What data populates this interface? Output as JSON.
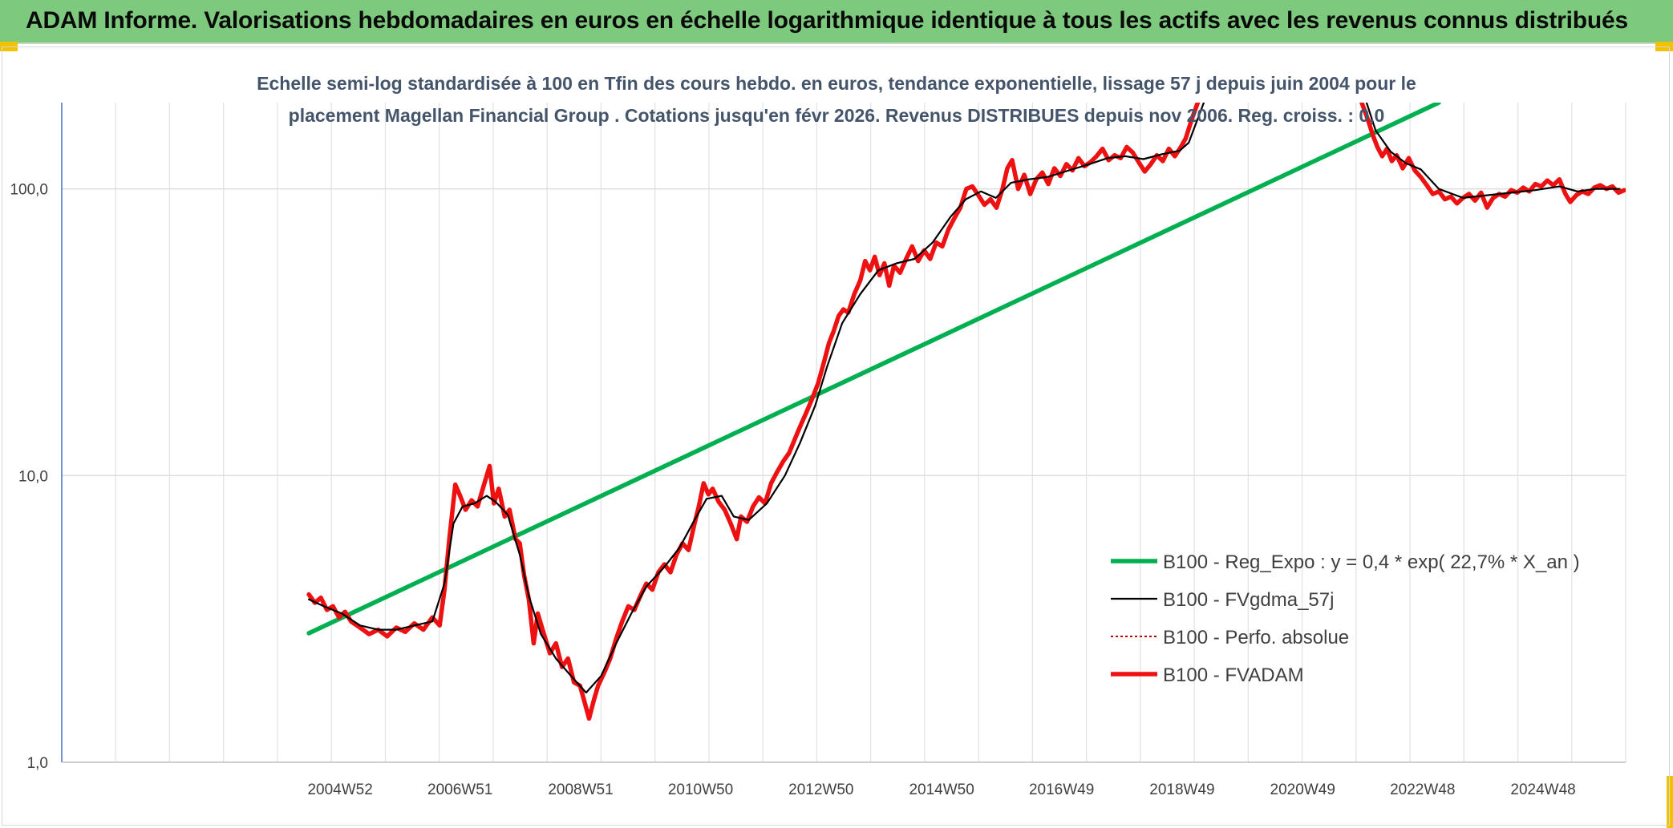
{
  "banner": {
    "title": "ADAM Informe. Valorisations hebdomadaires en euros en échelle logarithmique identique à tous les actifs avec les revenus connus distribués",
    "background": "#7dc97d",
    "corner_color": "#f2c200"
  },
  "chart_data": {
    "type": "line",
    "subtitle_lines": [
      "Echelle semi-log standardisée à 100 en Tfin des cours hebdo. en euros, tendance exponentielle, lissage 57 j depuis juin 2004 pour le",
      "placement Magellan Financial Group . Cotations jusqu'en févr 2026. Revenus DISTRIBUES depuis nov 2006. Reg. croiss. : 0,0"
    ],
    "y_scale": "log",
    "ylim": [
      1,
      200
    ],
    "y_ticks": [
      {
        "value": 1,
        "label": "1,0"
      },
      {
        "value": 10,
        "label": "10,0"
      },
      {
        "value": 100,
        "label": "100,0"
      }
    ],
    "xlim": [
      2000.35,
      2026.3
    ],
    "x_ticks": [
      {
        "value": 2004.97,
        "label": "2004W52"
      },
      {
        "value": 2006.96,
        "label": "2006W51"
      },
      {
        "value": 2008.96,
        "label": "2008W51"
      },
      {
        "value": 2010.95,
        "label": "2010W50"
      },
      {
        "value": 2012.95,
        "label": "2012W50"
      },
      {
        "value": 2014.95,
        "label": "2014W50"
      },
      {
        "value": 2016.94,
        "label": "2016W49"
      },
      {
        "value": 2018.94,
        "label": "2018W49"
      },
      {
        "value": 2020.94,
        "label": "2020W49"
      },
      {
        "value": 2022.93,
        "label": "2022W48"
      },
      {
        "value": 2024.93,
        "label": "2024W48"
      }
    ],
    "grid": true,
    "legend_position": "bottom-right",
    "series": [
      {
        "name": "B100 - Reg_Expo : y = 0,4 * exp( 22,7% *  X_an )",
        "color": "#00b050",
        "style": "solid-thick",
        "points": [
          [
            2004.45,
            2.82
          ],
          [
            2023.2,
            200
          ]
        ]
      },
      {
        "name": "B100 - FVgdma_57j",
        "color": "#000000",
        "style": "solid-thin",
        "points": [
          [
            2004.45,
            3.7
          ],
          [
            2004.7,
            3.5
          ],
          [
            2005.0,
            3.3
          ],
          [
            2005.3,
            3.0
          ],
          [
            2005.6,
            2.9
          ],
          [
            2005.9,
            2.9
          ],
          [
            2006.2,
            3.0
          ],
          [
            2006.5,
            3.1
          ],
          [
            2006.7,
            4.2
          ],
          [
            2006.85,
            6.8
          ],
          [
            2007.0,
            7.8
          ],
          [
            2007.2,
            8.0
          ],
          [
            2007.4,
            8.5
          ],
          [
            2007.55,
            8.1
          ],
          [
            2007.75,
            7.3
          ],
          [
            2007.95,
            5.3
          ],
          [
            2008.1,
            3.8
          ],
          [
            2008.3,
            2.8
          ],
          [
            2008.55,
            2.3
          ],
          [
            2008.8,
            2.0
          ],
          [
            2009.05,
            1.75
          ],
          [
            2009.3,
            2.0
          ],
          [
            2009.55,
            2.6
          ],
          [
            2009.8,
            3.3
          ],
          [
            2010.05,
            4.1
          ],
          [
            2010.35,
            4.8
          ],
          [
            2010.6,
            5.6
          ],
          [
            2010.85,
            7.0
          ],
          [
            2011.05,
            8.3
          ],
          [
            2011.3,
            8.5
          ],
          [
            2011.5,
            7.2
          ],
          [
            2011.75,
            7.0
          ],
          [
            2012.05,
            8.0
          ],
          [
            2012.35,
            10.0
          ],
          [
            2012.6,
            13.0
          ],
          [
            2012.85,
            17.5
          ],
          [
            2013.05,
            24
          ],
          [
            2013.3,
            34
          ],
          [
            2013.6,
            43
          ],
          [
            2013.9,
            52
          ],
          [
            2014.2,
            55
          ],
          [
            2014.5,
            57
          ],
          [
            2014.8,
            65
          ],
          [
            2015.1,
            80
          ],
          [
            2015.35,
            92
          ],
          [
            2015.6,
            98
          ],
          [
            2015.85,
            93
          ],
          [
            2016.1,
            105
          ],
          [
            2016.4,
            108
          ],
          [
            2016.7,
            110
          ],
          [
            2017.0,
            115
          ],
          [
            2017.4,
            122
          ],
          [
            2017.7,
            128
          ],
          [
            2018.0,
            130
          ],
          [
            2018.3,
            127
          ],
          [
            2018.6,
            132
          ],
          [
            2018.9,
            136
          ],
          [
            2019.05,
            145
          ],
          [
            2019.3,
            200
          ]
        ],
        "segments_after_gap": [
          [
            2022.0,
            200
          ],
          [
            2022.15,
            160
          ],
          [
            2022.4,
            135
          ],
          [
            2022.65,
            123
          ],
          [
            2022.9,
            117
          ],
          [
            2023.2,
            100
          ],
          [
            2023.6,
            93
          ],
          [
            2024.0,
            95
          ],
          [
            2024.4,
            97
          ],
          [
            2024.8,
            99
          ],
          [
            2025.2,
            102
          ],
          [
            2025.5,
            98
          ],
          [
            2025.8,
            100
          ],
          [
            2026.2,
            100
          ]
        ]
      },
      {
        "name": "B100 - Perfo. absolue",
        "color": "#c00000",
        "style": "dotted",
        "points": []
      },
      {
        "name": "B100 - FVADAM",
        "color": "#ee1111",
        "style": "solid-thick",
        "points": [
          [
            2004.45,
            3.85
          ],
          [
            2004.55,
            3.6
          ],
          [
            2004.65,
            3.75
          ],
          [
            2004.75,
            3.4
          ],
          [
            2004.85,
            3.5
          ],
          [
            2004.95,
            3.2
          ],
          [
            2005.05,
            3.35
          ],
          [
            2005.15,
            3.1
          ],
          [
            2005.3,
            2.95
          ],
          [
            2005.45,
            2.8
          ],
          [
            2005.6,
            2.9
          ],
          [
            2005.75,
            2.75
          ],
          [
            2005.9,
            2.95
          ],
          [
            2006.05,
            2.85
          ],
          [
            2006.2,
            3.05
          ],
          [
            2006.35,
            2.9
          ],
          [
            2006.5,
            3.2
          ],
          [
            2006.62,
            3.0
          ],
          [
            2006.7,
            4.0
          ],
          [
            2006.78,
            6.0
          ],
          [
            2006.88,
            9.3
          ],
          [
            2006.96,
            8.5
          ],
          [
            2007.05,
            7.6
          ],
          [
            2007.15,
            8.2
          ],
          [
            2007.25,
            7.8
          ],
          [
            2007.35,
            9.2
          ],
          [
            2007.45,
            10.8
          ],
          [
            2007.52,
            8.0
          ],
          [
            2007.6,
            9.0
          ],
          [
            2007.7,
            7.2
          ],
          [
            2007.78,
            7.6
          ],
          [
            2007.88,
            6.0
          ],
          [
            2007.95,
            5.8
          ],
          [
            2008.02,
            4.5
          ],
          [
            2008.1,
            3.7
          ],
          [
            2008.18,
            2.6
          ],
          [
            2008.25,
            3.3
          ],
          [
            2008.35,
            2.8
          ],
          [
            2008.45,
            2.4
          ],
          [
            2008.55,
            2.6
          ],
          [
            2008.65,
            2.15
          ],
          [
            2008.75,
            2.3
          ],
          [
            2008.85,
            1.9
          ],
          [
            2008.95,
            1.85
          ],
          [
            2009.05,
            1.55
          ],
          [
            2009.1,
            1.42
          ],
          [
            2009.18,
            1.65
          ],
          [
            2009.25,
            1.85
          ],
          [
            2009.35,
            2.05
          ],
          [
            2009.45,
            2.3
          ],
          [
            2009.55,
            2.7
          ],
          [
            2009.65,
            3.1
          ],
          [
            2009.75,
            3.5
          ],
          [
            2009.85,
            3.4
          ],
          [
            2009.95,
            3.8
          ],
          [
            2010.05,
            4.2
          ],
          [
            2010.15,
            4.0
          ],
          [
            2010.25,
            4.6
          ],
          [
            2010.35,
            4.9
          ],
          [
            2010.45,
            4.6
          ],
          [
            2010.55,
            5.3
          ],
          [
            2010.65,
            5.8
          ],
          [
            2010.75,
            5.5
          ],
          [
            2010.85,
            6.8
          ],
          [
            2010.92,
            7.8
          ],
          [
            2011.0,
            9.4
          ],
          [
            2011.08,
            8.6
          ],
          [
            2011.15,
            9.0
          ],
          [
            2011.25,
            8.1
          ],
          [
            2011.35,
            7.6
          ],
          [
            2011.45,
            6.8
          ],
          [
            2011.55,
            6.0
          ],
          [
            2011.62,
            7.2
          ],
          [
            2011.72,
            6.9
          ],
          [
            2011.82,
            7.8
          ],
          [
            2011.92,
            8.4
          ],
          [
            2012.02,
            8.0
          ],
          [
            2012.12,
            9.4
          ],
          [
            2012.22,
            10.3
          ],
          [
            2012.32,
            11.2
          ],
          [
            2012.42,
            12.0
          ],
          [
            2012.52,
            13.5
          ],
          [
            2012.6,
            14.8
          ],
          [
            2012.7,
            16.5
          ],
          [
            2012.8,
            18.5
          ],
          [
            2012.9,
            21
          ],
          [
            2013.0,
            25
          ],
          [
            2013.08,
            29
          ],
          [
            2013.16,
            32
          ],
          [
            2013.24,
            36
          ],
          [
            2013.32,
            38
          ],
          [
            2013.4,
            37
          ],
          [
            2013.5,
            43
          ],
          [
            2013.6,
            48
          ],
          [
            2013.68,
            56
          ],
          [
            2013.76,
            52
          ],
          [
            2013.84,
            58
          ],
          [
            2013.92,
            50
          ],
          [
            2014.0,
            55
          ],
          [
            2014.08,
            46
          ],
          [
            2014.16,
            54
          ],
          [
            2014.26,
            51
          ],
          [
            2014.36,
            57
          ],
          [
            2014.46,
            63
          ],
          [
            2014.56,
            56
          ],
          [
            2014.66,
            61
          ],
          [
            2014.76,
            57
          ],
          [
            2014.86,
            65
          ],
          [
            2014.96,
            63
          ],
          [
            2015.06,
            72
          ],
          [
            2015.16,
            79
          ],
          [
            2015.26,
            86
          ],
          [
            2015.36,
            100
          ],
          [
            2015.46,
            102
          ],
          [
            2015.56,
            95
          ],
          [
            2015.66,
            88
          ],
          [
            2015.76,
            92
          ],
          [
            2015.86,
            86
          ],
          [
            2015.96,
            100
          ],
          [
            2016.04,
            118
          ],
          [
            2016.12,
            126
          ],
          [
            2016.22,
            100
          ],
          [
            2016.32,
            112
          ],
          [
            2016.42,
            96
          ],
          [
            2016.52,
            108
          ],
          [
            2016.62,
            114
          ],
          [
            2016.72,
            104
          ],
          [
            2016.82,
            118
          ],
          [
            2016.92,
            111
          ],
          [
            2017.02,
            122
          ],
          [
            2017.12,
            116
          ],
          [
            2017.22,
            128
          ],
          [
            2017.32,
            120
          ],
          [
            2017.42,
            124
          ],
          [
            2017.52,
            130
          ],
          [
            2017.62,
            138
          ],
          [
            2017.72,
            126
          ],
          [
            2017.82,
            131
          ],
          [
            2017.92,
            128
          ],
          [
            2018.02,
            140
          ],
          [
            2018.12,
            134
          ],
          [
            2018.22,
            124
          ],
          [
            2018.32,
            115
          ],
          [
            2018.42,
            122
          ],
          [
            2018.52,
            131
          ],
          [
            2018.62,
            125
          ],
          [
            2018.72,
            138
          ],
          [
            2018.82,
            130
          ],
          [
            2018.92,
            140
          ],
          [
            2019.0,
            150
          ],
          [
            2019.1,
            175
          ],
          [
            2019.2,
            200
          ]
        ],
        "segments_after_gap": [
          [
            2021.92,
            200
          ],
          [
            2022.02,
            175
          ],
          [
            2022.1,
            155
          ],
          [
            2022.18,
            140
          ],
          [
            2022.26,
            130
          ],
          [
            2022.34,
            138
          ],
          [
            2022.42,
            125
          ],
          [
            2022.5,
            131
          ],
          [
            2022.6,
            118
          ],
          [
            2022.7,
            128
          ],
          [
            2022.8,
            116
          ],
          [
            2022.9,
            110
          ],
          [
            2023.0,
            103
          ],
          [
            2023.1,
            96
          ],
          [
            2023.2,
            98
          ],
          [
            2023.3,
            92
          ],
          [
            2023.4,
            94
          ],
          [
            2023.5,
            89
          ],
          [
            2023.6,
            93
          ],
          [
            2023.7,
            96
          ],
          [
            2023.8,
            91
          ],
          [
            2023.9,
            97
          ],
          [
            2024.0,
            86
          ],
          [
            2024.1,
            93
          ],
          [
            2024.2,
            96
          ],
          [
            2024.3,
            94
          ],
          [
            2024.4,
            99
          ],
          [
            2024.5,
            97
          ],
          [
            2024.6,
            101
          ],
          [
            2024.7,
            98
          ],
          [
            2024.8,
            104
          ],
          [
            2024.9,
            102
          ],
          [
            2025.0,
            107
          ],
          [
            2025.1,
            103
          ],
          [
            2025.2,
            108
          ],
          [
            2025.3,
            96
          ],
          [
            2025.38,
            90
          ],
          [
            2025.48,
            95
          ],
          [
            2025.58,
            98
          ],
          [
            2025.68,
            96
          ],
          [
            2025.78,
            101
          ],
          [
            2025.88,
            103
          ],
          [
            2025.98,
            100
          ],
          [
            2026.08,
            102
          ],
          [
            2026.18,
            97
          ],
          [
            2026.28,
            99
          ]
        ]
      }
    ]
  }
}
